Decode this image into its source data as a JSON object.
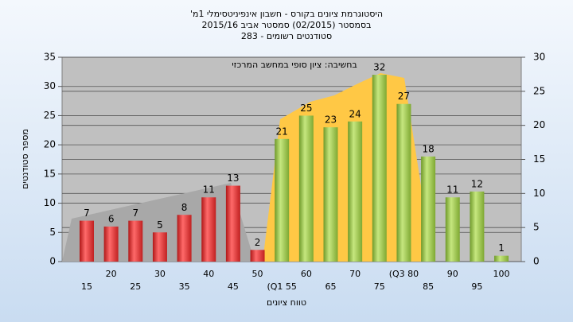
{
  "chart_data": {
    "type": "bar",
    "title": "היסטוגרמת ציונים בקורס - חשבון אינפיניטסימלי 1מ'",
    "subtitle": "בסמסטר (02/2015) סמסטר אביב 2015/16",
    "subtitle2": "סטודנטים רשומים - 283",
    "annotation": "בחשיבה: ציון סופי במחשב המרכזי",
    "ylabel": "מספר סטודנטים",
    "xlabel": "טווח ציונים",
    "categories": [
      "15",
      "20",
      "25",
      "30",
      "35",
      "40",
      "45",
      "50",
      "(Q1 55",
      "60",
      "65",
      "70",
      "75",
      "(Q3 80",
      "85",
      "90",
      "95",
      "100"
    ],
    "values": [
      7,
      6,
      7,
      5,
      8,
      11,
      13,
      2,
      21,
      25,
      23,
      24,
      32,
      27,
      18,
      11,
      12,
      1
    ],
    "colors": [
      "red",
      "red",
      "red",
      "red",
      "red",
      "red",
      "red",
      "red",
      "green",
      "green",
      "green",
      "green",
      "green",
      "green",
      "green",
      "green",
      "green",
      "green"
    ],
    "ylim": [
      0,
      35
    ],
    "yticks": [
      0,
      5,
      10,
      15,
      20,
      25,
      30,
      35
    ],
    "y2lim": [
      0,
      30
    ],
    "y2ticks": [
      0,
      5,
      10,
      15,
      20,
      25,
      30
    ],
    "grid": true
  }
}
